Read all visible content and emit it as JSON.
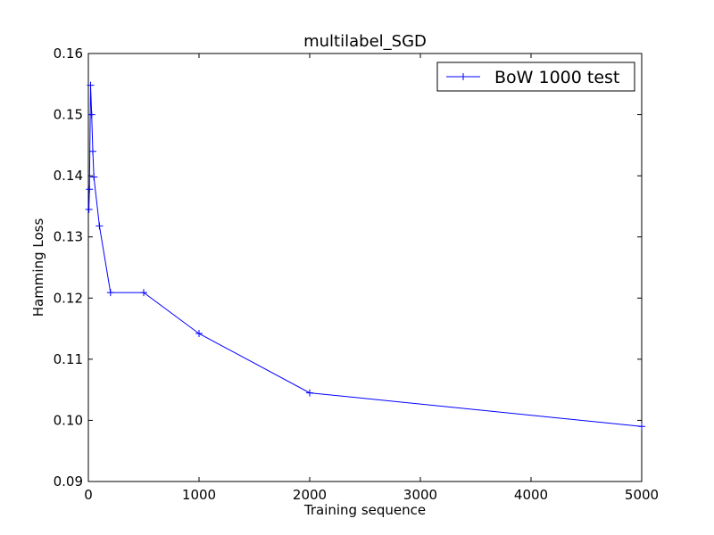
{
  "chart_data": {
    "type": "line",
    "title": "multilabel_SGD",
    "xlabel": "Training sequence",
    "ylabel": "Hamming Loss",
    "xlim": [
      0,
      5000
    ],
    "ylim": [
      0.09,
      0.16
    ],
    "xticks": [
      0,
      1000,
      2000,
      3000,
      4000,
      5000
    ],
    "xtick_labels": [
      "0",
      "1000",
      "2000",
      "3000",
      "4000",
      "5000"
    ],
    "yticks": [
      0.09,
      0.1,
      0.11,
      0.12,
      0.13,
      0.14,
      0.15,
      0.16
    ],
    "ytick_labels": [
      "0.09",
      "0.10",
      "0.11",
      "0.12",
      "0.13",
      "0.14",
      "0.15",
      "0.16"
    ],
    "grid": false,
    "legend_position": "top-right",
    "series": [
      {
        "name": "BoW 1000 test",
        "color": "#0000ff",
        "marker": "plus",
        "x": [
          5,
          10,
          20,
          30,
          40,
          50,
          100,
          200,
          500,
          1000,
          2000,
          5000
        ],
        "y": [
          0.1345,
          0.1378,
          0.1548,
          0.15,
          0.144,
          0.1398,
          0.1318,
          0.1209,
          0.1209,
          0.1142,
          0.1045,
          0.099
        ]
      }
    ]
  }
}
